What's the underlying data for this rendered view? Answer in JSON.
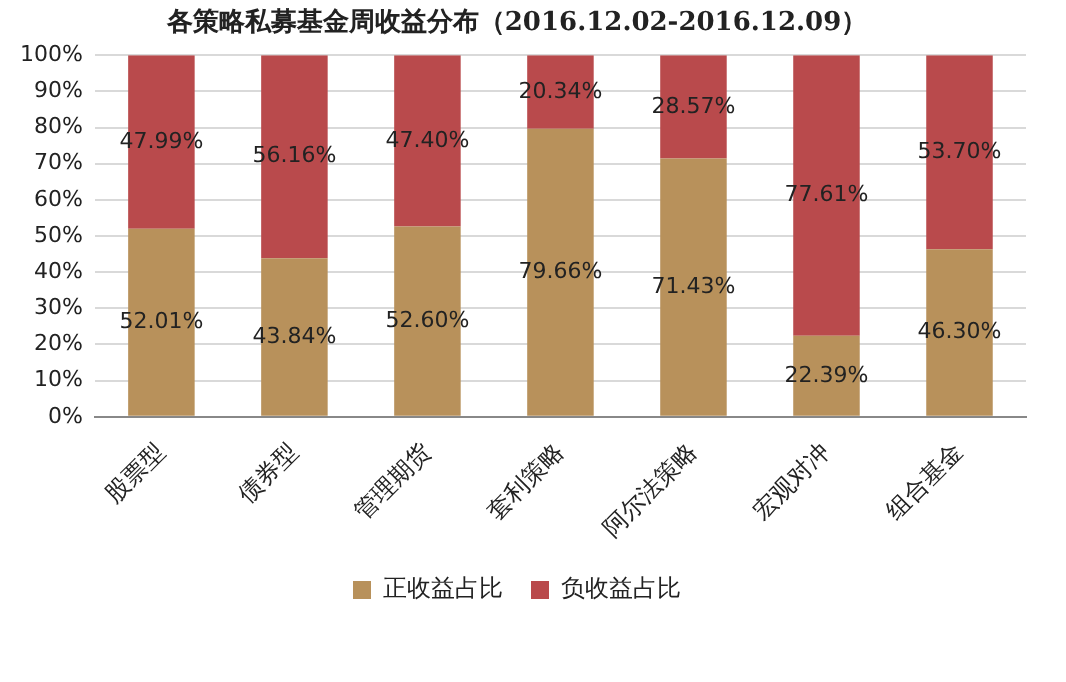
{
  "chart_data": {
    "type": "bar",
    "title": "各策略私募基金周收益分布（2016.12.02-2016.12.09）",
    "stacked": true,
    "categories": [
      "股票型",
      "债券型",
      "管理期货",
      "套利策略",
      "阿尔法策略",
      "宏观对冲",
      "组合基金"
    ],
    "series": [
      {
        "name": "正收益占比",
        "color": "#b8915b",
        "values": [
          52.01,
          43.84,
          52.6,
          79.66,
          71.43,
          22.39,
          46.3
        ],
        "value_labels": [
          "52.01%",
          "43.84%",
          "52.60%",
          "79.66%",
          "71.43%",
          "22.39%",
          "46.30%"
        ]
      },
      {
        "name": "负收益占比",
        "color": "#b94a4c",
        "values": [
          47.99,
          56.16,
          47.4,
          20.34,
          28.57,
          77.61,
          53.7
        ],
        "value_labels": [
          "47.99%",
          "56.16%",
          "47.40%",
          "20.34%",
          "28.57%",
          "77.61%",
          "53.70%"
        ]
      }
    ],
    "ylim": [
      0,
      100
    ],
    "yticks": [
      {
        "value": 0,
        "label": "0%"
      },
      {
        "value": 10,
        "label": "10%"
      },
      {
        "value": 20,
        "label": "20%"
      },
      {
        "value": 30,
        "label": "30%"
      },
      {
        "value": 40,
        "label": "40%"
      },
      {
        "value": 50,
        "label": "50%"
      },
      {
        "value": 60,
        "label": "60%"
      },
      {
        "value": 70,
        "label": "70%"
      },
      {
        "value": 80,
        "label": "80%"
      },
      {
        "value": 90,
        "label": "90%"
      },
      {
        "value": 100,
        "label": "100%"
      }
    ],
    "grid": "y",
    "legend": "bottom"
  }
}
